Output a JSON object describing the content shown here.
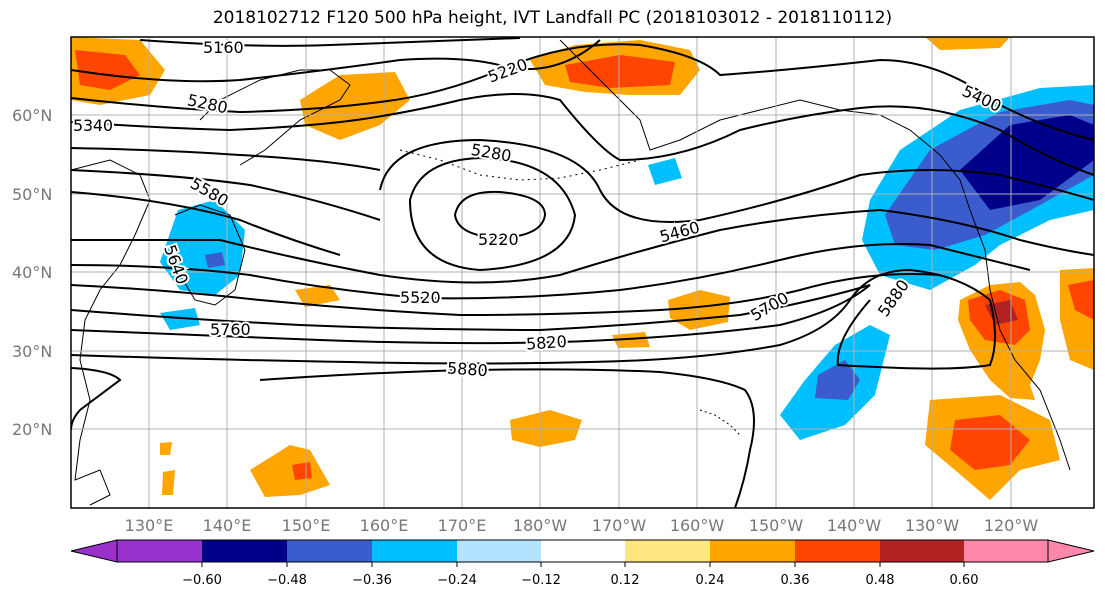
{
  "title": "2018102712 F120 500 hPa height, IVT Landfall PC (2018103012 - 2018110112)",
  "map": {
    "projection": "PlateCarree",
    "lon_range": [
      120,
      -110
    ],
    "lat_range": [
      10,
      70
    ],
    "lat_labels": [
      "20°N",
      "30°N",
      "40°N",
      "50°N",
      "60°N"
    ],
    "lon_labels": [
      "130°E",
      "140°E",
      "150°E",
      "160°E",
      "170°E",
      "180°W",
      "170°W",
      "160°W",
      "150°W",
      "140°W",
      "130°W",
      "120°W"
    ],
    "height_contour_labels": [
      "5160",
      "5220",
      "5220",
      "5280",
      "5280",
      "5340",
      "5400",
      "5460",
      "5520",
      "5580",
      "5640",
      "5700",
      "5760",
      "5820",
      "5880",
      "5880"
    ],
    "colors": {
      "neg_extreme": "#9932cc",
      "neg_060": "#00008b",
      "neg_048": "#3a5ccc",
      "neg_036": "#00bfff",
      "neg_024": "#b2e3ff",
      "neutral": "#ffffff",
      "pos_012": "#ffe680",
      "pos_024": "#ffa500",
      "pos_036": "#ff4500",
      "pos_048": "#b22222",
      "pos_extreme": "#ff88aa"
    }
  },
  "colorbar": {
    "ticks": [
      "−0.60",
      "−0.48",
      "−0.36",
      "−0.24",
      "−0.12",
      "0.12",
      "0.24",
      "0.36",
      "0.48",
      "0.60"
    ]
  }
}
